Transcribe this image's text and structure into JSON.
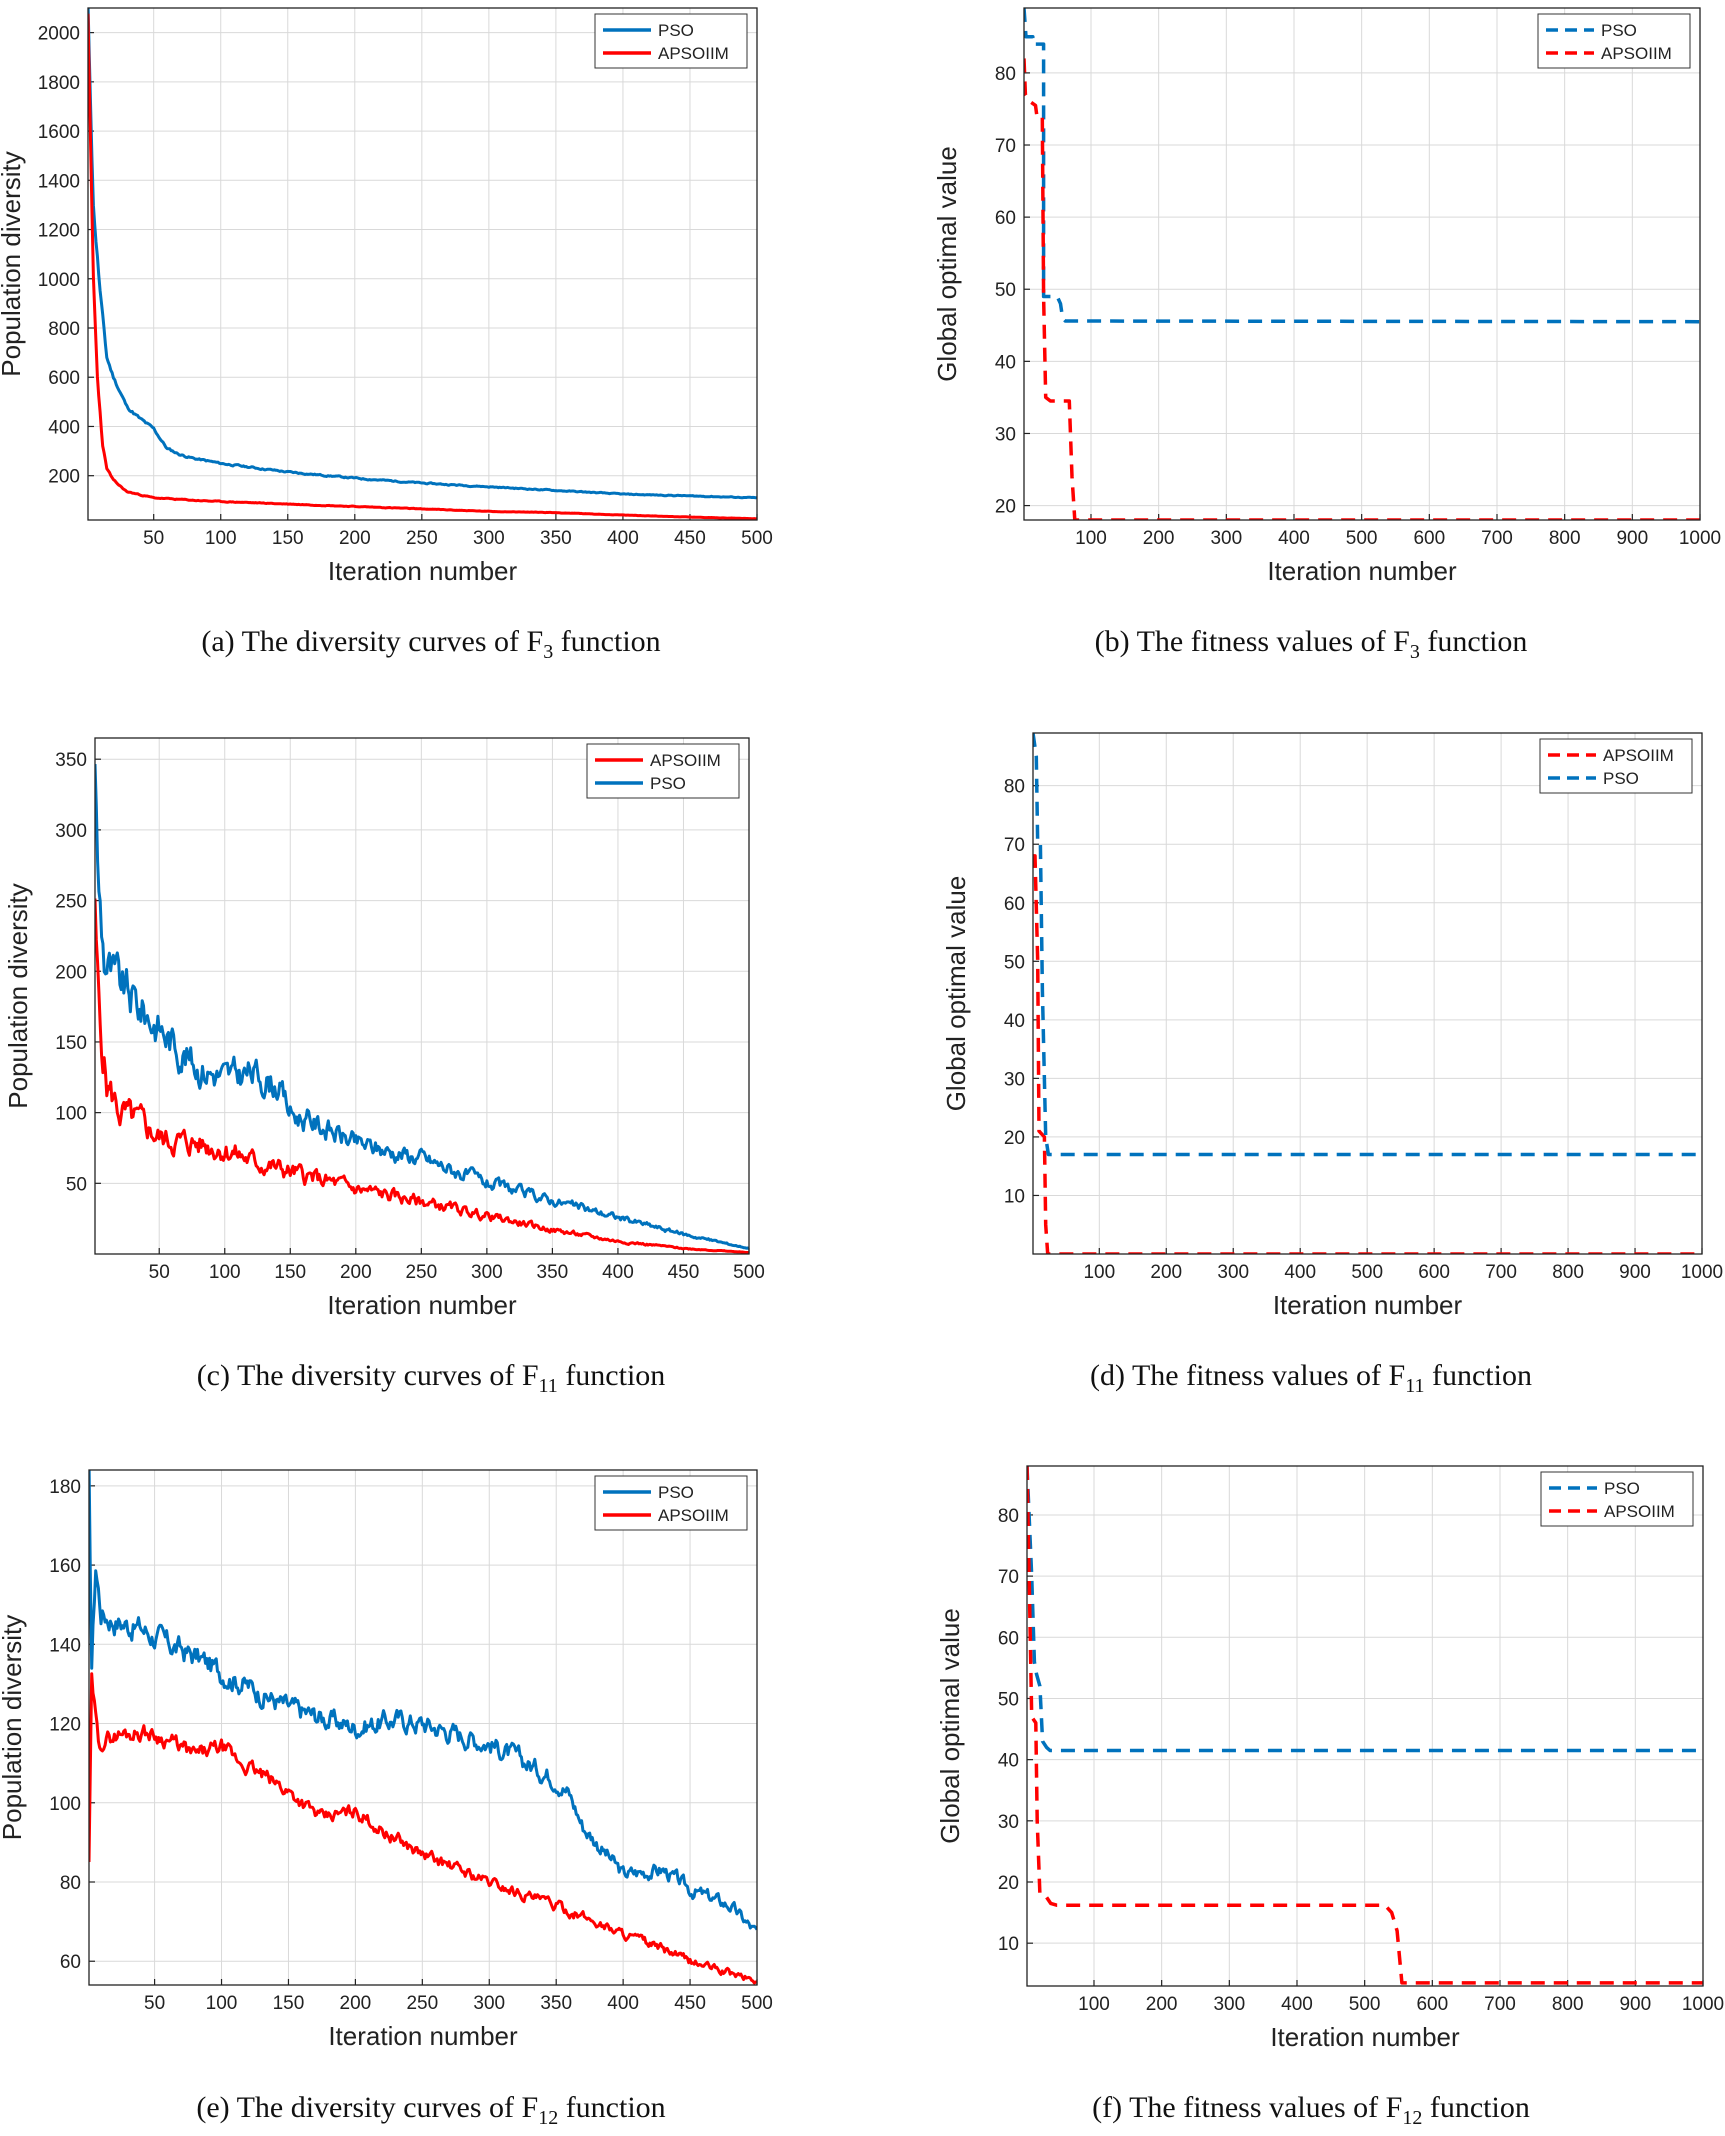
{
  "colors": {
    "pso": "#0072bd",
    "apso": "#ff0000",
    "grid": "#d9d9d9",
    "axis": "#222222"
  },
  "chart_data": [
    {
      "type": "line",
      "style": "solid",
      "caption": {
        "prefix": "(a) The diversity curves of F",
        "sub": "3",
        "suffix": " function"
      },
      "xlabel": "Iteration number",
      "ylabel": "Population diversity",
      "xlim": [
        1,
        500
      ],
      "ylim": [
        20,
        2100
      ],
      "xticks": [
        50,
        100,
        150,
        200,
        250,
        300,
        350,
        400,
        450,
        500
      ],
      "yticks": [
        200,
        400,
        600,
        800,
        1000,
        1200,
        1400,
        1600,
        1800,
        2000
      ],
      "legend": [
        "PSO",
        "APSOIIM"
      ],
      "series": [
        {
          "name": "PSO",
          "color": "pso",
          "noise": 0.012,
          "seed": 11,
          "points": [
            [
              1,
              2100
            ],
            [
              5,
              1300
            ],
            [
              10,
              950
            ],
            [
              15,
              680
            ],
            [
              20,
              600
            ],
            [
              30,
              480
            ],
            [
              40,
              430
            ],
            [
              50,
              390
            ],
            [
              60,
              310
            ],
            [
              70,
              285
            ],
            [
              80,
              270
            ],
            [
              100,
              250
            ],
            [
              150,
              215
            ],
            [
              200,
              190
            ],
            [
              250,
              170
            ],
            [
              300,
              155
            ],
            [
              350,
              140
            ],
            [
              400,
              125
            ],
            [
              450,
              118
            ],
            [
              500,
              110
            ]
          ]
        },
        {
          "name": "APSOIIM",
          "color": "apso",
          "noise": 0.015,
          "seed": 23,
          "points": [
            [
              1,
              2050
            ],
            [
              3,
              1500
            ],
            [
              5,
              1000
            ],
            [
              8,
              600
            ],
            [
              12,
              320
            ],
            [
              15,
              230
            ],
            [
              20,
              180
            ],
            [
              30,
              135
            ],
            [
              50,
              110
            ],
            [
              80,
              100
            ],
            [
              100,
              95
            ],
            [
              150,
              85
            ],
            [
              200,
              75
            ],
            [
              250,
              65
            ],
            [
              300,
              55
            ],
            [
              350,
              50
            ],
            [
              400,
              40
            ],
            [
              450,
              32
            ],
            [
              500,
              25
            ]
          ]
        }
      ]
    },
    {
      "type": "line",
      "style": "dashed",
      "caption": {
        "prefix": "(b) The fitness values of F",
        "sub": "3",
        "suffix": " function"
      },
      "xlabel": "Iteration number",
      "ylabel": "Global optimal value",
      "xlim": [
        1,
        1000
      ],
      "ylim": [
        18,
        89
      ],
      "xticks": [
        100,
        200,
        300,
        400,
        500,
        600,
        700,
        800,
        900,
        1000
      ],
      "yticks": [
        20,
        30,
        40,
        50,
        60,
        70,
        80
      ],
      "legend": [
        "PSO",
        "APSOIIM"
      ],
      "series": [
        {
          "name": "PSO",
          "color": "pso",
          "noise": 0,
          "seed": 1,
          "points": [
            [
              1,
              89
            ],
            [
              4,
              85
            ],
            [
              14,
              85
            ],
            [
              14,
              84
            ],
            [
              30,
              84
            ],
            [
              30,
              49
            ],
            [
              50,
              49
            ],
            [
              55,
              48
            ],
            [
              58,
              46
            ],
            [
              62,
              45.6
            ],
            [
              1000,
              45.5
            ]
          ]
        },
        {
          "name": "APSOIIM",
          "color": "apso",
          "noise": 0,
          "seed": 2,
          "points": [
            [
              1,
              82
            ],
            [
              3,
              77
            ],
            [
              10,
              76
            ],
            [
              18,
              75.5
            ],
            [
              20,
              74
            ],
            [
              28,
              74
            ],
            [
              30,
              49
            ],
            [
              33,
              35
            ],
            [
              40,
              34.5
            ],
            [
              68,
              34.5
            ],
            [
              72,
              24
            ],
            [
              76,
              18
            ],
            [
              1000,
              18
            ]
          ]
        }
      ]
    },
    {
      "type": "line",
      "style": "solid",
      "caption": {
        "prefix": "(c) The diversity curves of F",
        "sub": "11",
        "suffix": " function"
      },
      "xlabel": "Iteration number",
      "ylabel": "Population diversity",
      "xlim": [
        1,
        500
      ],
      "ylim": [
        0,
        365
      ],
      "xticks": [
        50,
        100,
        150,
        200,
        250,
        300,
        350,
        400,
        450,
        500
      ],
      "yticks": [
        50,
        100,
        150,
        200,
        250,
        300,
        350
      ],
      "legend": [
        "APSOIIM",
        "PSO"
      ],
      "series": [
        {
          "name": "APSOIIM",
          "color": "apso",
          "noise": 0.09,
          "seed": 5,
          "points": [
            [
              1,
              235
            ],
            [
              3,
              190
            ],
            [
              5,
              160
            ],
            [
              10,
              120
            ],
            [
              20,
              100
            ],
            [
              40,
              90
            ],
            [
              50,
              82
            ],
            [
              60,
              80
            ],
            [
              80,
              78
            ],
            [
              100,
              74
            ],
            [
              120,
              66
            ],
            [
              150,
              58
            ],
            [
              200,
              46
            ],
            [
              250,
              37
            ],
            [
              300,
              27
            ],
            [
              350,
              17
            ],
            [
              400,
              9
            ],
            [
              450,
              4
            ],
            [
              500,
              1
            ]
          ]
        },
        {
          "name": "PSO",
          "color": "pso",
          "noise": 0.07,
          "seed": 9,
          "points": [
            [
              1,
              360
            ],
            [
              3,
              270
            ],
            [
              8,
              210
            ],
            [
              15,
              195
            ],
            [
              25,
              185
            ],
            [
              40,
              170
            ],
            [
              60,
              150
            ],
            [
              80,
              132
            ],
            [
              100,
              125
            ],
            [
              120,
              128
            ],
            [
              140,
              120
            ],
            [
              150,
              100
            ],
            [
              175,
              90
            ],
            [
              200,
              78
            ],
            [
              250,
              68
            ],
            [
              300,
              50
            ],
            [
              350,
              38
            ],
            [
              400,
              26
            ],
            [
              450,
              14
            ],
            [
              500,
              4
            ]
          ]
        }
      ]
    },
    {
      "type": "line",
      "style": "dashed",
      "caption": {
        "prefix": "(d) The fitness values of F",
        "sub": "11",
        "suffix": " function"
      },
      "xlabel": "Iteration number",
      "ylabel": "Global optimal value",
      "xlim": [
        1,
        1000
      ],
      "ylim": [
        0,
        89
      ],
      "xticks": [
        100,
        200,
        300,
        400,
        500,
        600,
        700,
        800,
        900,
        1000
      ],
      "yticks": [
        10,
        20,
        30,
        40,
        50,
        60,
        70,
        80
      ],
      "legend": [
        "APSOIIM",
        "PSO"
      ],
      "series": [
        {
          "name": "APSOIIM",
          "color": "apso",
          "noise": 0,
          "seed": 3,
          "points": [
            [
              1,
              68
            ],
            [
              4,
              68
            ],
            [
              8,
              50
            ],
            [
              10,
              21
            ],
            [
              18,
              20
            ],
            [
              20,
              5
            ],
            [
              23,
              0
            ],
            [
              1000,
              0
            ]
          ]
        },
        {
          "name": "PSO",
          "color": "pso",
          "noise": 0,
          "seed": 4,
          "points": [
            [
              1,
              89
            ],
            [
              6,
              85
            ],
            [
              8,
              70
            ],
            [
              12,
              70
            ],
            [
              15,
              45
            ],
            [
              20,
              20
            ],
            [
              24,
              17
            ],
            [
              1000,
              17
            ]
          ]
        }
      ]
    },
    {
      "type": "line",
      "style": "solid",
      "caption": {
        "prefix": "(e) The diversity curves of F",
        "sub": "12",
        "suffix": " function"
      },
      "xlabel": "Iteration number",
      "ylabel": "Population diversity",
      "xlim": [
        1,
        500
      ],
      "ylim": [
        54,
        184
      ],
      "xticks": [
        50,
        100,
        150,
        200,
        250,
        300,
        350,
        400,
        450,
        500
      ],
      "yticks": [
        60,
        80,
        100,
        120,
        140,
        160,
        180
      ],
      "legend": [
        "PSO",
        "APSOIIM"
      ],
      "series": [
        {
          "name": "PSO",
          "color": "pso",
          "noise": 0.018,
          "seed": 17,
          "points": [
            [
              1,
              184
            ],
            [
              3,
              135
            ],
            [
              6,
              160
            ],
            [
              10,
              148
            ],
            [
              20,
              146
            ],
            [
              40,
              144
            ],
            [
              60,
              140
            ],
            [
              80,
              137
            ],
            [
              100,
              133
            ],
            [
              150,
              124
            ],
            [
              200,
              119
            ],
            [
              230,
              121
            ],
            [
              250,
              120
            ],
            [
              300,
              115
            ],
            [
              350,
              106
            ],
            [
              360,
              102
            ],
            [
              370,
              94
            ],
            [
              400,
              82
            ],
            [
              430,
              83
            ],
            [
              450,
              78
            ],
            [
              480,
              74
            ],
            [
              500,
              67
            ]
          ]
        },
        {
          "name": "APSOIIM",
          "color": "apso",
          "noise": 0.014,
          "seed": 29,
          "points": [
            [
              1,
              84
            ],
            [
              3,
              130
            ],
            [
              8,
              115
            ],
            [
              20,
              117
            ],
            [
              40,
              118
            ],
            [
              60,
              116
            ],
            [
              80,
              112
            ],
            [
              100,
              114
            ],
            [
              110,
              111
            ],
            [
              150,
              103
            ],
            [
              175,
              96
            ],
            [
              200,
              98
            ],
            [
              220,
              93
            ],
            [
              250,
              87
            ],
            [
              300,
              80
            ],
            [
              350,
              74
            ],
            [
              400,
              67
            ],
            [
              430,
              63
            ],
            [
              450,
              60
            ],
            [
              480,
              57
            ],
            [
              500,
              55
            ]
          ]
        }
      ]
    },
    {
      "type": "line",
      "style": "dashed",
      "caption": {
        "prefix": "(f) The fitness values of F",
        "sub": "12",
        "suffix": " function"
      },
      "xlabel": "Iteration number",
      "ylabel": "Global optimal value",
      "xlim": [
        1,
        1000
      ],
      "ylim": [
        3,
        88
      ],
      "xticks": [
        100,
        200,
        300,
        400,
        500,
        600,
        700,
        800,
        900,
        1000
      ],
      "yticks": [
        10,
        20,
        30,
        40,
        50,
        60,
        70,
        80
      ],
      "legend": [
        "PSO",
        "APSOIIM"
      ],
      "series": [
        {
          "name": "PSO",
          "color": "pso",
          "noise": 0,
          "seed": 6,
          "points": [
            [
              1,
              88
            ],
            [
              8,
              70
            ],
            [
              12,
              56
            ],
            [
              15,
              54
            ],
            [
              20,
              52
            ],
            [
              24,
              43
            ],
            [
              30,
              42
            ],
            [
              35,
              41.5
            ],
            [
              1000,
              41.5
            ]
          ]
        },
        {
          "name": "APSOIIM",
          "color": "apso",
          "noise": 0,
          "seed": 7,
          "points": [
            [
              1,
              88
            ],
            [
              5,
              65
            ],
            [
              8,
              47
            ],
            [
              14,
              46
            ],
            [
              16,
              30
            ],
            [
              20,
              18
            ],
            [
              30,
              17.5
            ],
            [
              36,
              16.5
            ],
            [
              45,
              16.2
            ],
            [
              530,
              16.2
            ],
            [
              540,
              15
            ],
            [
              548,
              12
            ],
            [
              555,
              3.5
            ],
            [
              1000,
              3.5
            ]
          ]
        }
      ]
    }
  ]
}
